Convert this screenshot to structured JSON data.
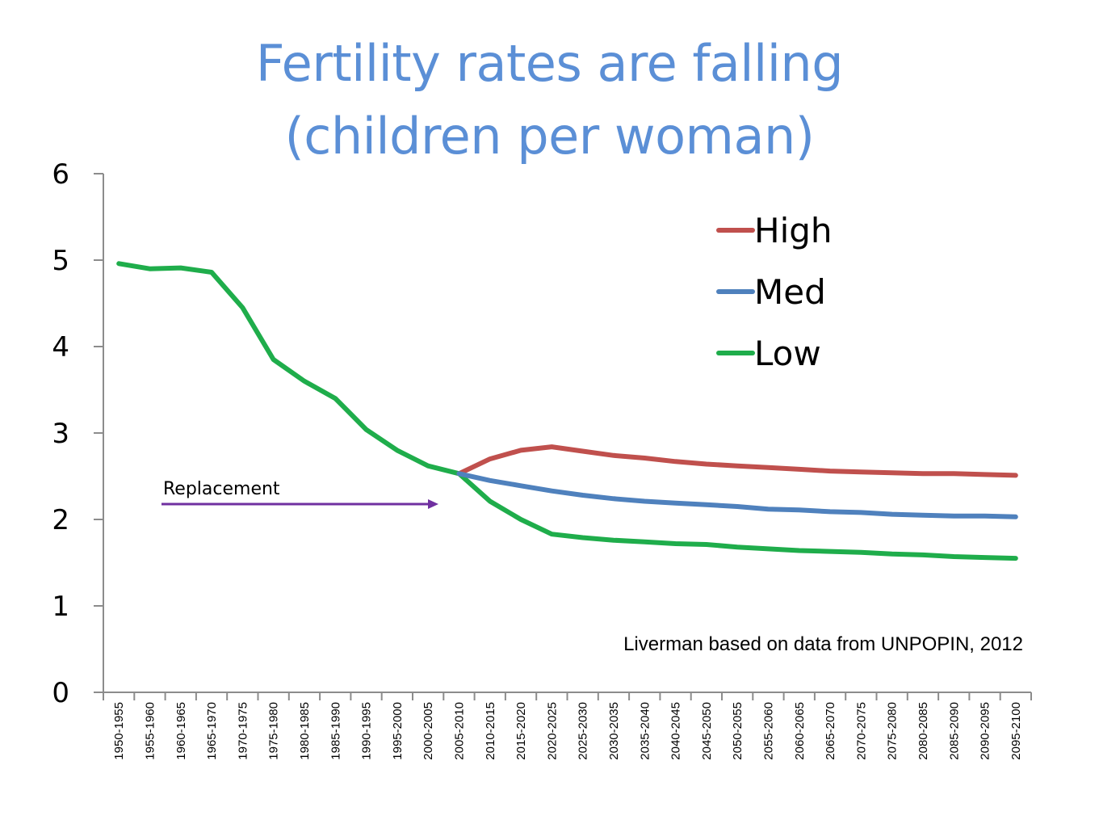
{
  "chart_data": {
    "type": "line",
    "title": "Fertility rates are falling",
    "subtitle": "(children per woman)",
    "xlabel": "",
    "ylabel": "",
    "ylim": [
      0,
      6
    ],
    "yticks": [
      "0",
      "1",
      "2",
      "3",
      "4",
      "5",
      "6"
    ],
    "grid": false,
    "legend_position": "top-right",
    "categories": [
      "1950-1955",
      "1955-1960",
      "1960-1965",
      "1965-1970",
      "1970-1975",
      "1975-1980",
      "1980-1985",
      "1985-1990",
      "1990-1995",
      "1995-2000",
      "2000-2005",
      "2005-2010",
      "2010-2015",
      "2015-2020",
      "2020-2025",
      "2025-2030",
      "2030-2035",
      "2035-2040",
      "2040-2045",
      "2045-2050",
      "2050-2055",
      "2055-2060",
      "2060-2065",
      "2065-2070",
      "2070-2075",
      "2075-2080",
      "2080-2085",
      "2085-2090",
      "2090-2095",
      "2095-2100"
    ],
    "series": [
      {
        "name": "High",
        "color": "#c0504d",
        "values": [
          null,
          null,
          null,
          null,
          null,
          null,
          null,
          null,
          null,
          null,
          null,
          2.53,
          2.7,
          2.8,
          2.84,
          2.79,
          2.74,
          2.71,
          2.67,
          2.64,
          2.62,
          2.6,
          2.58,
          2.56,
          2.55,
          2.54,
          2.53,
          2.53,
          2.52,
          2.51
        ]
      },
      {
        "name": "Med",
        "color": "#4f81bd",
        "values": [
          null,
          null,
          null,
          null,
          null,
          null,
          null,
          null,
          null,
          null,
          null,
          2.53,
          2.45,
          2.39,
          2.33,
          2.28,
          2.24,
          2.21,
          2.19,
          2.17,
          2.15,
          2.12,
          2.11,
          2.09,
          2.08,
          2.06,
          2.05,
          2.04,
          2.04,
          2.03
        ]
      },
      {
        "name": "Low",
        "color": "#1fad4b",
        "values": [
          4.96,
          4.9,
          4.91,
          4.86,
          4.45,
          3.85,
          3.6,
          3.4,
          3.04,
          2.8,
          2.62,
          2.53,
          2.21,
          2.0,
          1.83,
          1.79,
          1.76,
          1.74,
          1.72,
          1.71,
          1.68,
          1.66,
          1.64,
          1.63,
          1.62,
          1.6,
          1.59,
          1.57,
          1.56,
          1.55
        ]
      }
    ],
    "annotations": [
      {
        "text": "Replacement",
        "arrow_color": "#7030a0"
      },
      {
        "text": "Liverman based on data from UNPOPIN, 2012"
      }
    ]
  }
}
